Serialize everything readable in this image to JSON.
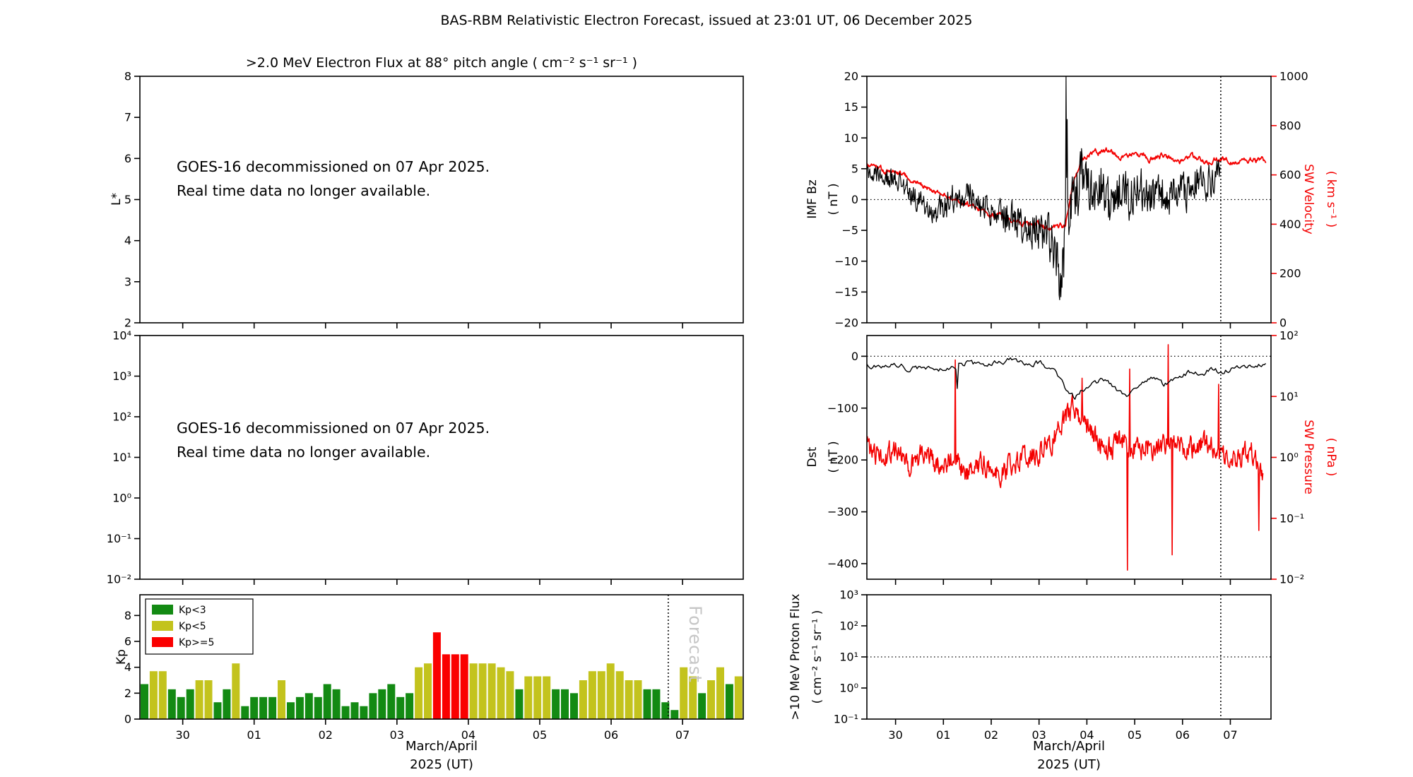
{
  "figure": {
    "title": "BAS-RBM Relativistic Electron Forecast, issued at 23:01 UT, 06 December 2025"
  },
  "colors": {
    "black": "#000000",
    "red": "#f40000",
    "kp_green": "#138a13",
    "kp_yellow": "#c3c31d",
    "kp_red": "#fa0000",
    "watermark_gray": "#c6c6c6"
  },
  "chart_data": {
    "type": "line",
    "x": {
      "range": [
        0,
        8.45
      ],
      "ticks": [
        {
          "t": 0.6,
          "label": "30"
        },
        {
          "t": 1.6,
          "label": "01"
        },
        {
          "t": 2.6,
          "label": "02"
        },
        {
          "t": 3.6,
          "label": "03"
        },
        {
          "t": 4.6,
          "label": "04"
        },
        {
          "t": 5.6,
          "label": "05"
        },
        {
          "t": 6.6,
          "label": "06"
        },
        {
          "t": 7.6,
          "label": "07"
        }
      ],
      "axis_label": [
        "March/April",
        "2025 (UT)"
      ],
      "forecast_line_t": 7.4
    },
    "panels": {
      "electron": {
        "title": ">2.0 MeV Electron Flux at 88° pitch angle ( cm⁻² s⁻¹ sr⁻¹ )",
        "ylabel": "L*",
        "yrange": [
          2,
          8
        ],
        "yticks": {
          "values": [
            2,
            3,
            4,
            5,
            6,
            7,
            8
          ],
          "labels": [
            "2",
            "3",
            "4",
            "5",
            "6",
            "7",
            "8"
          ]
        },
        "notice": [
          "GOES-16 decommissioned on 07 Apr 2025.",
          "Real time data no longer available."
        ]
      },
      "flux_log": {
        "yrange_exp": [
          -2,
          4
        ],
        "yticks": {
          "values": [
            -2,
            -1,
            0,
            1,
            2,
            3,
            4
          ],
          "labels": [
            "10⁻²",
            "10⁻¹",
            "10⁰",
            "10¹",
            "10²",
            "10³",
            "10⁴"
          ]
        },
        "notice": [
          "GOES-16 decommissioned on 07 Apr 2025.",
          "Real time data no longer available."
        ]
      },
      "kp": {
        "type": "bar",
        "ylabel": "Kp",
        "yrange": [
          0,
          9.6
        ],
        "yticks": {
          "values": [
            0,
            2,
            4,
            6,
            8
          ],
          "labels": [
            "0",
            "2",
            "4",
            "6",
            "8"
          ]
        },
        "bar_dt": 0.128,
        "thresholds": {
          "yellow_min": 3,
          "red_min": 5
        },
        "values": [
          2.7,
          3.7,
          3.7,
          2.3,
          1.7,
          2.3,
          3.0,
          3.0,
          1.3,
          2.3,
          4.3,
          1.0,
          1.7,
          1.7,
          1.7,
          3.0,
          1.3,
          1.7,
          2.0,
          1.7,
          2.7,
          2.3,
          1.0,
          1.3,
          1.0,
          2.0,
          2.3,
          2.7,
          1.7,
          2.0,
          4.0,
          4.3,
          6.7,
          5.0,
          5.0,
          5.0,
          4.3,
          4.3,
          4.3,
          4.0,
          3.7,
          2.3,
          3.3,
          3.3,
          3.3,
          2.3,
          2.3,
          2.0,
          3.0,
          3.7,
          3.7,
          4.3,
          3.7,
          3.0,
          3.0,
          2.3,
          2.3,
          1.3,
          0.7,
          4.0,
          3.3,
          2.0,
          3.0,
          4.0,
          2.7,
          3.3
        ],
        "legend": [
          {
            "label": "Kp<3",
            "color_key": "kp_green"
          },
          {
            "label": "Kp<5",
            "color_key": "kp_yellow"
          },
          {
            "label": "Kp>=5",
            "color_key": "kp_red"
          }
        ],
        "forecast_watermark": "Forecast"
      },
      "imf": {
        "ylabel_left": [
          "IMF Bz",
          "( nT )"
        ],
        "yrange": [
          -20,
          20
        ],
        "yticks": {
          "values": [
            -20,
            -15,
            -10,
            -5,
            0,
            5,
            10,
            15,
            20
          ],
          "labels": [
            "−20",
            "−15",
            "−10",
            "−5",
            "0",
            "5",
            "10",
            "15",
            "20"
          ]
        },
        "ylabel_right": [
          "SW Velocity",
          "( km s⁻¹ )"
        ],
        "yrange_right": [
          0,
          1000
        ],
        "yticks_right": {
          "values": [
            0,
            200,
            400,
            600,
            800,
            1000
          ],
          "labels": [
            "0",
            "200",
            "400",
            "600",
            "800",
            "1000"
          ]
        },
        "hline": 0,
        "bz": {
          "seed": 101,
          "t0": 0,
          "t1": 7.4,
          "dt": 0.012,
          "walk": 0.3,
          "mix": 1.0,
          "anchors": [
            [
              0,
              4.5
            ],
            [
              0.3,
              4
            ],
            [
              0.6,
              3
            ],
            [
              0.9,
              1
            ],
            [
              1.2,
              -1
            ],
            [
              1.5,
              -2
            ],
            [
              1.8,
              0
            ],
            [
              2.1,
              1
            ],
            [
              2.4,
              -1
            ],
            [
              2.7,
              -2
            ],
            [
              3.0,
              -3
            ],
            [
              3.3,
              -4
            ],
            [
              3.6,
              -5
            ],
            [
              3.8,
              -6
            ],
            [
              3.95,
              -9
            ],
            [
              4.05,
              -13
            ],
            [
              4.12,
              -8
            ],
            [
              4.17,
              8
            ],
            [
              4.22,
              -2
            ],
            [
              4.3,
              3
            ],
            [
              4.5,
              4
            ],
            [
              4.7,
              0
            ],
            [
              4.9,
              3
            ],
            [
              5.1,
              -2
            ],
            [
              5.3,
              2
            ],
            [
              5.5,
              0
            ],
            [
              5.7,
              3
            ],
            [
              5.9,
              -1
            ],
            [
              6.1,
              2
            ],
            [
              6.3,
              0
            ],
            [
              6.5,
              2
            ],
            [
              6.7,
              1
            ],
            [
              6.9,
              3
            ],
            [
              7.1,
              2
            ],
            [
              7.25,
              4
            ],
            [
              7.4,
              3
            ]
          ],
          "amp_anchors": [
            [
              0,
              1.3
            ],
            [
              1,
              1.8
            ],
            [
              2,
              2.3
            ],
            [
              3,
              2.6
            ],
            [
              3.7,
              3.2
            ],
            [
              4.0,
              4.0
            ],
            [
              4.2,
              6.0
            ],
            [
              4.7,
              4.5
            ],
            [
              5.2,
              3.6
            ],
            [
              6.0,
              3.0
            ],
            [
              6.8,
              2.6
            ],
            [
              7.4,
              2.4
            ]
          ],
          "spikes": [
            [
              4.02,
              -15.5
            ],
            [
              4.044,
              -12
            ],
            [
              4.164,
              20
            ],
            [
              4.188,
              13
            ]
          ]
        },
        "velocity": {
          "seed": 202,
          "t0": 0,
          "t1": 8.35,
          "dt": 0.012,
          "walk": 0.8,
          "mix": 0.38,
          "amp": 22,
          "anchors": [
            [
              0,
              640
            ],
            [
              0.2,
              620
            ],
            [
              0.5,
              610
            ],
            [
              0.8,
              590
            ],
            [
              1.0,
              570
            ],
            [
              1.3,
              545
            ],
            [
              1.6,
              520
            ],
            [
              2.0,
              490
            ],
            [
              2.3,
              465
            ],
            [
              2.6,
              440
            ],
            [
              2.9,
              420
            ],
            [
              3.2,
              400
            ],
            [
              3.5,
              390
            ],
            [
              3.8,
              385
            ],
            [
              4.0,
              385
            ],
            [
              4.15,
              395
            ],
            [
              4.3,
              560
            ],
            [
              4.45,
              650
            ],
            [
              4.7,
              690
            ],
            [
              5.0,
              700
            ],
            [
              5.3,
              670
            ],
            [
              5.6,
              690
            ],
            [
              5.9,
              660
            ],
            [
              6.2,
              680
            ],
            [
              6.5,
              650
            ],
            [
              6.8,
              670
            ],
            [
              7.1,
              655
            ],
            [
              7.4,
              670
            ],
            [
              7.7,
              650
            ],
            [
              8.0,
              665
            ],
            [
              8.35,
              655
            ]
          ],
          "spikes": []
        }
      },
      "dst": {
        "ylabel_left": [
          "Dst",
          "( nT )"
        ],
        "yrange": [
          -430,
          40
        ],
        "yticks": {
          "values": [
            0,
            -100,
            -200,
            -300,
            -400
          ],
          "labels": [
            "0",
            "−100",
            "−200",
            "−300",
            "−400"
          ]
        },
        "ylabel_right": [
          "SW Pressure",
          "( nPa )"
        ],
        "yrange_right_exp": [
          -2,
          2
        ],
        "yticks_right": {
          "values": [
            -2,
            -1,
            0,
            1,
            2
          ],
          "labels": [
            "10⁻²",
            "10⁻¹",
            "10⁰",
            "10¹",
            "10²"
          ]
        },
        "hline": 0,
        "dst": {
          "seed": 303,
          "t0": 0,
          "t1": 8.35,
          "dt": 0.03,
          "walk": 0.55,
          "mix": 0.6,
          "amp": 7,
          "anchors": [
            [
              0,
              -18
            ],
            [
              0.3,
              -22
            ],
            [
              0.6,
              -15
            ],
            [
              0.9,
              -25
            ],
            [
              1.2,
              -20
            ],
            [
              1.5,
              -28
            ],
            [
              1.8,
              -22
            ],
            [
              2.1,
              -12
            ],
            [
              2.4,
              -18
            ],
            [
              2.7,
              -10
            ],
            [
              3.0,
              -8
            ],
            [
              3.3,
              -15
            ],
            [
              3.6,
              -12
            ],
            [
              3.9,
              -25
            ],
            [
              4.05,
              -45
            ],
            [
              4.2,
              -70
            ],
            [
              4.35,
              -80
            ],
            [
              4.5,
              -65
            ],
            [
              4.7,
              -55
            ],
            [
              4.9,
              -45
            ],
            [
              5.1,
              -55
            ],
            [
              5.3,
              -70
            ],
            [
              5.45,
              -75
            ],
            [
              5.6,
              -60
            ],
            [
              5.8,
              -45
            ],
            [
              6.0,
              -40
            ],
            [
              6.2,
              -55
            ],
            [
              6.4,
              -45
            ],
            [
              6.6,
              -35
            ],
            [
              6.8,
              -30
            ],
            [
              7.0,
              -35
            ],
            [
              7.2,
              -25
            ],
            [
              7.4,
              -30
            ],
            [
              7.7,
              -22
            ],
            [
              8.0,
              -18
            ],
            [
              8.35,
              -12
            ]
          ],
          "spikes": [
            [
              1.89,
              -62
            ]
          ]
        },
        "pressure": {
          "seed": 404,
          "t0": 0,
          "t1": 8.3,
          "dt": 0.012,
          "walk": 0.5,
          "mix": 0.7,
          "amp": 0.22,
          "anchors": [
            [
              0,
              0.15
            ],
            [
              0.3,
              0.0
            ],
            [
              0.6,
              0.1
            ],
            [
              0.9,
              -0.1
            ],
            [
              1.2,
              0.05
            ],
            [
              1.5,
              -0.15
            ],
            [
              1.8,
              0.0
            ],
            [
              2.1,
              -0.25
            ],
            [
              2.4,
              -0.1
            ],
            [
              2.7,
              -0.3
            ],
            [
              3.0,
              -0.15
            ],
            [
              3.3,
              0.0
            ],
            [
              3.6,
              0.1
            ],
            [
              3.9,
              0.3
            ],
            [
              4.1,
              0.55
            ],
            [
              4.3,
              0.8
            ],
            [
              4.5,
              0.6
            ],
            [
              4.7,
              0.4
            ],
            [
              4.9,
              0.25
            ],
            [
              5.1,
              0.15
            ],
            [
              5.3,
              0.3
            ],
            [
              5.5,
              0.2
            ],
            [
              5.7,
              0.1
            ],
            [
              5.9,
              0.2
            ],
            [
              6.1,
              0.15
            ],
            [
              6.3,
              0.25
            ],
            [
              6.5,
              0.2
            ],
            [
              6.7,
              0.1
            ],
            [
              6.9,
              0.2
            ],
            [
              7.1,
              0.25
            ],
            [
              7.3,
              0.15
            ],
            [
              7.5,
              0.1
            ],
            [
              7.8,
              0.0
            ],
            [
              8.05,
              0.1
            ],
            [
              8.3,
              -0.4
            ]
          ],
          "spikes": [
            [
              1.85,
              1.6
            ],
            [
              4.5,
              1.3
            ],
            [
              5.45,
              -1.85
            ],
            [
              5.5,
              1.45
            ],
            [
              6.3,
              1.85
            ],
            [
              6.38,
              -1.6
            ],
            [
              7.35,
              1.2
            ],
            [
              8.2,
              -1.2
            ]
          ]
        }
      },
      "proton": {
        "ylabel": [
          ">10 MeV Proton Flux",
          "( cm⁻² s⁻¹ sr⁻¹ )"
        ],
        "yrange_exp": [
          -1,
          3
        ],
        "yticks": {
          "values": [
            -1,
            0,
            1,
            2,
            3
          ],
          "labels": [
            "10⁻¹",
            "10⁰",
            "10¹",
            "10²",
            "10³"
          ]
        },
        "hline_exp": 1
      }
    }
  }
}
